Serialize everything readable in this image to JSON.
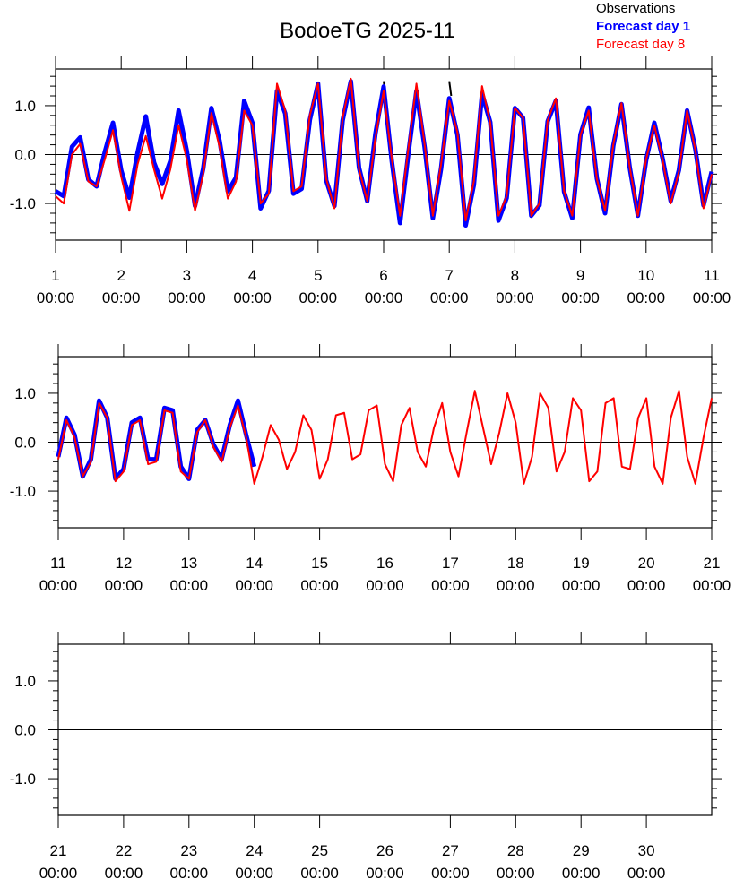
{
  "chart_data": [
    {
      "type": "line",
      "title": "BodoeTG 2025-11",
      "legend": "upper right",
      "zero_line": true,
      "x": [
        1,
        1.125,
        1.25,
        1.375,
        1.5,
        1.625,
        1.75,
        1.875,
        2,
        2.125,
        2.25,
        2.375,
        2.5,
        2.625,
        2.75,
        2.875,
        3,
        3.125,
        3.25,
        3.375,
        3.5,
        3.625,
        3.75,
        3.875,
        4,
        4.125,
        4.25,
        4.375,
        4.5,
        4.625,
        4.75,
        4.875,
        5,
        5.125,
        5.25,
        5.375,
        5.5,
        5.625,
        5.75,
        5.875,
        6,
        6.125,
        6.25,
        6.375,
        6.5,
        6.625,
        6.75,
        6.875,
        7,
        7.125,
        7.25,
        7.375,
        7.5,
        7.625,
        7.75,
        7.875,
        8,
        8.125,
        8.25,
        8.375,
        8.5,
        8.625,
        8.75,
        8.875,
        9,
        9.125,
        9.25,
        9.375,
        9.5,
        9.625,
        9.75,
        9.875,
        10,
        10.125,
        10.25,
        10.375,
        10.5,
        10.625,
        10.75,
        10.875,
        11
      ],
      "xlim": [
        1,
        11
      ],
      "xticks": [
        {
          "value": 1,
          "label": "1\n00:00"
        },
        {
          "value": 2,
          "label": "2\n00:00"
        },
        {
          "value": 3,
          "label": "3\n00:00"
        },
        {
          "value": 4,
          "label": "4\n00:00"
        },
        {
          "value": 5,
          "label": "5\n00:00"
        },
        {
          "value": 6,
          "label": "6\n00:00"
        },
        {
          "value": 7,
          "label": "7\n00:00"
        },
        {
          "value": 8,
          "label": "8\n00:00"
        },
        {
          "value": 9,
          "label": "9\n00:00"
        },
        {
          "value": 10,
          "label": "10\n00:00"
        },
        {
          "value": 11,
          "label": "11\n00:00"
        }
      ],
      "ylim": [
        -1.75,
        1.75
      ],
      "yticks": [
        {
          "value": -1,
          "label": "-1.0"
        },
        {
          "value": 0,
          "label": "0.0"
        },
        {
          "value": 1,
          "label": "1.0"
        }
      ],
      "yminorticks": [
        -1.6,
        -1.4,
        -1.2,
        -0.8,
        -0.6,
        -0.4,
        -0.2,
        0.2,
        0.4,
        0.6,
        0.8,
        1.2,
        1.4,
        1.6
      ],
      "series": [
        {
          "name": "Observations",
          "color": "#000000",
          "width": 2,
          "x": [
            6.0,
            6.03,
            6.5,
            7.0,
            7.03
          ],
          "values": [
            1.5,
            1.2,
            null,
            1.5,
            1.2
          ]
        },
        {
          "name": "Forecast day 1",
          "color": "#0000ff",
          "width": 5,
          "bold": true,
          "values": [
            -0.75,
            -0.85,
            0.16,
            0.35,
            -0.51,
            -0.65,
            0.05,
            0.65,
            -0.32,
            -0.88,
            0.04,
            0.78,
            -0.16,
            -0.6,
            -0.13,
            0.9,
            0.08,
            -1.05,
            -0.29,
            0.95,
            0.28,
            -0.75,
            -0.47,
            1.1,
            0.65,
            -1.1,
            -0.74,
            1.3,
            0.84,
            -0.8,
            -0.7,
            0.71,
            1.45,
            -0.53,
            -1.05,
            0.7,
            1.5,
            -0.27,
            -0.95,
            0.43,
            1.39,
            -0.14,
            -1.4,
            0,
            1.3,
            0.15,
            -1.3,
            -0.29,
            1.15,
            0.4,
            -1.45,
            -0.62,
            1.25,
            0.66,
            -1.35,
            -0.89,
            0.95,
            0.75,
            -1.25,
            -1.04,
            0.68,
            1.1,
            -0.76,
            -1.3,
            0.41,
            0.96,
            -0.49,
            -1.2,
            0.18,
            1.03,
            -0.26,
            -1.25,
            -0.12,
            0.65,
            -0.07,
            -0.95,
            -0.32,
            0.9,
            0.12,
            -1.04,
            -0.35
          ]
        },
        {
          "name": "Forecast day 8",
          "color": "#ff0000",
          "width": 2,
          "values": [
            -0.85,
            -1.0,
            0.0,
            0.22,
            -0.55,
            -0.65,
            -0.1,
            0.5,
            -0.45,
            -1.15,
            -0.2,
            0.38,
            -0.3,
            -0.9,
            -0.3,
            0.6,
            -0.1,
            -1.15,
            -0.4,
            0.85,
            0.15,
            -0.9,
            -0.55,
            0.9,
            0.6,
            -1.0,
            -0.8,
            1.45,
            0.9,
            -0.75,
            -0.65,
            0.8,
            1.45,
            -0.5,
            -1.1,
            0.75,
            1.55,
            -0.3,
            -0.95,
            0.35,
            1.3,
            -0.1,
            -1.25,
            0.1,
            1.45,
            0.2,
            -1.25,
            -0.2,
            1.1,
            0.45,
            -1.35,
            -0.55,
            1.4,
            0.65,
            -1.25,
            -0.85,
            0.95,
            0.75,
            -1.25,
            -1.0,
            0.7,
            1.15,
            -0.75,
            -1.25,
            0.4,
            0.9,
            -0.5,
            -1.15,
            0.2,
            1.05,
            -0.25,
            -1.25,
            -0.1,
            0.6,
            -0.1,
            -1.0,
            -0.35,
            0.9,
            0.1,
            -1.1,
            -0.4
          ]
        }
      ]
    },
    {
      "type": "line",
      "zero_line": true,
      "x": [
        11,
        11.125,
        11.25,
        11.375,
        11.5,
        11.625,
        11.75,
        11.875,
        12,
        12.125,
        12.25,
        12.375,
        12.5,
        12.625,
        12.75,
        12.875,
        13,
        13.125,
        13.25,
        13.375,
        13.5,
        13.625,
        13.75,
        13.875,
        14,
        14.125,
        14.25,
        14.375,
        14.5,
        14.625,
        14.75,
        14.875,
        15,
        15.125,
        15.25,
        15.375,
        15.5,
        15.625,
        15.75,
        15.875,
        16,
        16.125,
        16.25,
        16.375,
        16.5,
        16.625,
        16.75,
        16.875,
        17,
        17.125,
        17.25,
        17.375,
        17.5,
        17.625,
        17.75,
        17.875,
        18,
        18.125,
        18.25,
        18.375,
        18.5,
        18.625,
        18.75,
        18.875,
        19,
        19.125,
        19.25,
        19.375,
        19.5,
        19.625,
        19.75,
        19.875,
        20,
        20.125,
        20.25,
        20.375,
        20.5,
        20.625,
        20.75,
        20.875,
        21
      ],
      "xlim": [
        11,
        21
      ],
      "xticks": [
        {
          "value": 11,
          "label": "11\n00:00"
        },
        {
          "value": 12,
          "label": "12\n00:00"
        },
        {
          "value": 13,
          "label": "13\n00:00"
        },
        {
          "value": 14,
          "label": "14\n00:00"
        },
        {
          "value": 15,
          "label": "15\n00:00"
        },
        {
          "value": 16,
          "label": "16\n00:00"
        },
        {
          "value": 17,
          "label": "17\n00:00"
        },
        {
          "value": 18,
          "label": "18\n00:00"
        },
        {
          "value": 19,
          "label": "19\n00:00"
        },
        {
          "value": 20,
          "label": "20\n00:00"
        },
        {
          "value": 21,
          "label": "21\n00:00"
        }
      ],
      "ylim": [
        -1.75,
        1.75
      ],
      "yticks": [
        {
          "value": -1,
          "label": "-1.0"
        },
        {
          "value": 0,
          "label": "0.0"
        },
        {
          "value": 1,
          "label": "1.0"
        }
      ],
      "yminorticks": [
        -1.6,
        -1.4,
        -1.2,
        -0.8,
        -0.6,
        -0.4,
        -0.2,
        0.2,
        0.4,
        0.6,
        0.8,
        1.2,
        1.4,
        1.6
      ],
      "series": [
        {
          "color": "#0000ff",
          "width": 5,
          "values": [
            -0.3,
            0.5,
            0.15,
            -0.7,
            -0.35,
            0.85,
            0.5,
            -0.75,
            -0.55,
            0.4,
            0.5,
            -0.35,
            -0.35,
            0.7,
            0.65,
            -0.5,
            -0.75,
            0.25,
            0.45,
            -0.05,
            -0.35,
            0.35,
            0.85,
            0.15,
            -0.5,
            null,
            null,
            null,
            null,
            null,
            null,
            null,
            null,
            null,
            null,
            null,
            null,
            null,
            null,
            null,
            null,
            null,
            null,
            null,
            null,
            null,
            null,
            null,
            null,
            null,
            null,
            null,
            null,
            null,
            null,
            null,
            null,
            null,
            null,
            null,
            null,
            null,
            null,
            null,
            null,
            null,
            null,
            null,
            null,
            null,
            null,
            null,
            null,
            null,
            null,
            null,
            null,
            null,
            null,
            null,
            null
          ]
        },
        {
          "color": "#ff0000",
          "width": 2,
          "values": [
            -0.35,
            0.45,
            0.1,
            -0.7,
            -0.4,
            0.8,
            0.5,
            -0.8,
            -0.6,
            0.35,
            0.45,
            -0.45,
            -0.4,
            0.65,
            0.6,
            -0.6,
            -0.75,
            0.2,
            0.45,
            -0.1,
            -0.4,
            0.3,
            0.75,
            0.1,
            -0.85,
            -0.3,
            0.35,
            0.05,
            -0.55,
            -0.2,
            0.55,
            0.25,
            -0.75,
            -0.35,
            0.55,
            0.6,
            -0.35,
            -0.25,
            0.65,
            0.75,
            -0.45,
            -0.8,
            0.35,
            0.7,
            -0.2,
            -0.5,
            0.3,
            0.8,
            -0.2,
            -0.7,
            0.2,
            1.05,
            0.3,
            -0.45,
            0.2,
            1.0,
            0.4,
            -0.85,
            -0.3,
            1.0,
            0.7,
            -0.6,
            -0.2,
            0.9,
            0.65,
            -0.8,
            -0.6,
            0.8,
            0.9,
            -0.5,
            -0.55,
            0.5,
            0.9,
            -0.5,
            -0.85,
            0.5,
            1.05,
            -0.3,
            -0.85,
            0.1,
            0.9
          ]
        }
      ]
    },
    {
      "type": "line",
      "zero_line": true,
      "x": [],
      "xlim": [
        21,
        31
      ],
      "xticks": [
        {
          "value": 21,
          "label": "21\n00:00"
        },
        {
          "value": 22,
          "label": "22\n00:00"
        },
        {
          "value": 23,
          "label": "23\n00:00"
        },
        {
          "value": 24,
          "label": "24\n00:00"
        },
        {
          "value": 25,
          "label": "25\n00:00"
        },
        {
          "value": 26,
          "label": "26\n00:00"
        },
        {
          "value": 27,
          "label": "27\n00:00"
        },
        {
          "value": 28,
          "label": "28\n00:00"
        },
        {
          "value": 29,
          "label": "29\n00:00"
        },
        {
          "value": 30,
          "label": "30\n00:00"
        }
      ],
      "ylim": [
        -1.75,
        1.75
      ],
      "yticks": [
        {
          "value": -1,
          "label": "-1.0"
        },
        {
          "value": 0,
          "label": "0.0"
        },
        {
          "value": 1,
          "label": "1.0"
        }
      ],
      "yminorticks": [
        -1.6,
        -1.4,
        -1.2,
        -0.8,
        -0.6,
        -0.4,
        -0.2,
        0.2,
        0.4,
        0.6,
        0.8,
        1.2,
        1.4,
        1.6
      ],
      "series": []
    }
  ]
}
